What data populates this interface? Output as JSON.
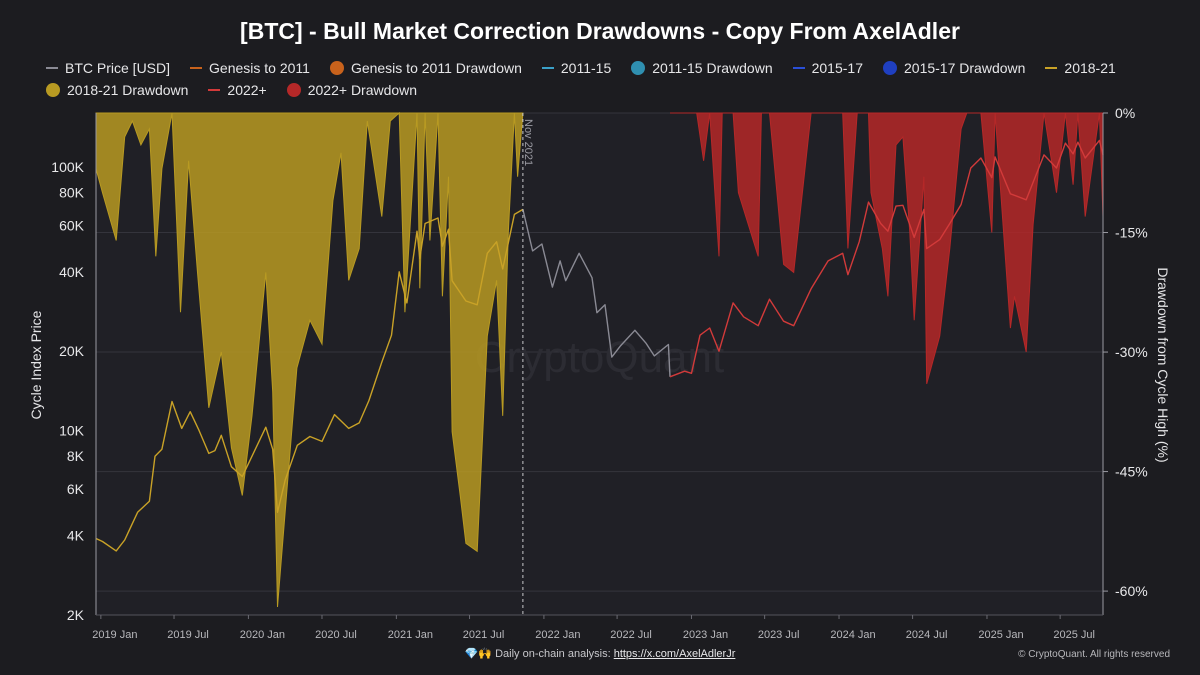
{
  "header": {
    "title": "[BTC] - Bull Market Correction Drawdowns - Copy From AxelAdler"
  },
  "legend": [
    {
      "label": "BTC Price [USD]",
      "kind": "line",
      "color": "#8a8a94"
    },
    {
      "label": "Genesis to 2011",
      "kind": "line",
      "color": "#c8621c"
    },
    {
      "label": "Genesis to 2011 Drawdown",
      "kind": "dot",
      "color": "#c8621c"
    },
    {
      "label": "2011-15",
      "kind": "line",
      "color": "#3aa0c8"
    },
    {
      "label": "2011-15 Drawdown",
      "kind": "dot",
      "color": "#2f8fb0"
    },
    {
      "label": "2015-17",
      "kind": "line",
      "color": "#2a4fd8"
    },
    {
      "label": "2015-17 Drawdown",
      "kind": "dot",
      "color": "#1f3fc0"
    },
    {
      "label": "2018-21",
      "kind": "line",
      "color": "#c9a227"
    },
    {
      "label": "2018-21 Drawdown",
      "kind": "dot",
      "color": "#b89a22"
    },
    {
      "label": "2022+",
      "kind": "line",
      "color": "#d23a3a"
    },
    {
      "label": "2022+ Drawdown",
      "kind": "dot",
      "color": "#b52828"
    }
  ],
  "footer": {
    "prefix": "💎🙌 Daily on-chain analysis: ",
    "link": "https://x.com/AxelAdlerJr",
    "copyright": "© CryptoQuant. All rights reserved"
  },
  "watermark": "CryptoQuant",
  "chart_data": {
    "type": "line",
    "title": "[BTC] - Bull Market Correction Drawdowns - Copy From AxelAdler",
    "ylabel_left": "Cycle Index Price",
    "ylabel_right": "Drawdown from Cycle High (%)",
    "y_scale_left": "log",
    "ylim_left": [
      2000,
      160000
    ],
    "ylim_right": [
      -63,
      0
    ],
    "x_range": [
      "2018-12-20",
      "2025-10-15"
    ],
    "left_ticks": [
      {
        "label": "100K",
        "value": 100000
      },
      {
        "label": "80K",
        "value": 80000
      },
      {
        "label": "60K",
        "value": 60000
      },
      {
        "label": "40K",
        "value": 40000
      },
      {
        "label": "20K",
        "value": 20000
      },
      {
        "label": "10K",
        "value": 10000
      },
      {
        "label": "8K",
        "value": 8000
      },
      {
        "label": "6K",
        "value": 6000
      },
      {
        "label": "4K",
        "value": 4000
      },
      {
        "label": "2K",
        "value": 2000
      }
    ],
    "right_ticks": [
      {
        "label": "0%",
        "value": 0
      },
      {
        "label": "-15%",
        "value": -15
      },
      {
        "label": "-30%",
        "value": -30
      },
      {
        "label": "-45%",
        "value": -45
      },
      {
        "label": "-60%",
        "value": -60
      }
    ],
    "x_ticks": [
      {
        "label": "2019 Jan",
        "date": "2019-01-01"
      },
      {
        "label": "2019 Jul",
        "date": "2019-07-01"
      },
      {
        "label": "2020 Jan",
        "date": "2020-01-01"
      },
      {
        "label": "2020 Jul",
        "date": "2020-07-01"
      },
      {
        "label": "2021 Jan",
        "date": "2021-01-01"
      },
      {
        "label": "2021 Jul",
        "date": "2021-07-01"
      },
      {
        "label": "2022 Jan",
        "date": "2022-01-01"
      },
      {
        "label": "2022 Jul",
        "date": "2022-07-01"
      },
      {
        "label": "2023 Jan",
        "date": "2023-01-01"
      },
      {
        "label": "2023 Jul",
        "date": "2023-07-01"
      },
      {
        "label": "2024 Jan",
        "date": "2024-01-01"
      },
      {
        "label": "2024 Jul",
        "date": "2024-07-01"
      },
      {
        "label": "2025 Jan",
        "date": "2025-01-01"
      },
      {
        "label": "2025 Jul",
        "date": "2025-07-01"
      }
    ],
    "annotation": {
      "label": "Nov 2021",
      "date": "2021-11-10"
    },
    "series": [
      {
        "name": "2018-21",
        "color": "#c9a227",
        "points": [
          [
            "2018-12-20",
            3900
          ],
          [
            "2019-01-05",
            3800
          ],
          [
            "2019-02-08",
            3500
          ],
          [
            "2019-03-01",
            3850
          ],
          [
            "2019-04-02",
            4900
          ],
          [
            "2019-05-01",
            5400
          ],
          [
            "2019-05-15",
            8000
          ],
          [
            "2019-06-01",
            8500
          ],
          [
            "2019-06-26",
            12900
          ],
          [
            "2019-07-20",
            10200
          ],
          [
            "2019-08-10",
            11800
          ],
          [
            "2019-09-01",
            10000
          ],
          [
            "2019-09-25",
            8200
          ],
          [
            "2019-10-10",
            8400
          ],
          [
            "2019-10-26",
            9600
          ],
          [
            "2019-11-20",
            7300
          ],
          [
            "2019-12-17",
            6700
          ],
          [
            "2020-01-10",
            8000
          ],
          [
            "2020-02-13",
            10300
          ],
          [
            "2020-03-01",
            8500
          ],
          [
            "2020-03-13",
            4900
          ],
          [
            "2020-04-01",
            6500
          ],
          [
            "2020-05-01",
            8800
          ],
          [
            "2020-06-01",
            9500
          ],
          [
            "2020-07-01",
            9100
          ],
          [
            "2020-08-01",
            11500
          ],
          [
            "2020-09-05",
            10200
          ],
          [
            "2020-10-01",
            10700
          ],
          [
            "2020-10-25",
            13000
          ],
          [
            "2020-11-25",
            18000
          ],
          [
            "2020-12-20",
            23000
          ],
          [
            "2021-01-08",
            40000
          ],
          [
            "2021-01-27",
            30500
          ],
          [
            "2021-02-21",
            57000
          ],
          [
            "2021-02-28",
            45000
          ],
          [
            "2021-03-13",
            61000
          ],
          [
            "2021-04-14",
            64000
          ],
          [
            "2021-04-25",
            50000
          ],
          [
            "2021-05-10",
            58000
          ],
          [
            "2021-05-19",
            37000
          ],
          [
            "2021-06-22",
            31000
          ],
          [
            "2021-07-20",
            30000
          ],
          [
            "2021-08-14",
            47000
          ],
          [
            "2021-09-06",
            52000
          ],
          [
            "2021-09-21",
            41000
          ],
          [
            "2021-10-20",
            66000
          ],
          [
            "2021-11-10",
            69000
          ]
        ]
      },
      {
        "name": "BTC Price [USD]",
        "color": "#8a8a94",
        "points": [
          [
            "2021-11-10",
            69000
          ],
          [
            "2021-12-04",
            48000
          ],
          [
            "2021-12-27",
            51000
          ],
          [
            "2022-01-22",
            35000
          ],
          [
            "2022-02-10",
            44000
          ],
          [
            "2022-02-24",
            37000
          ],
          [
            "2022-03-29",
            47000
          ],
          [
            "2022-04-30",
            38000
          ],
          [
            "2022-05-12",
            28000
          ],
          [
            "2022-06-01",
            30000
          ],
          [
            "2022-06-18",
            19000
          ],
          [
            "2022-07-10",
            21000
          ],
          [
            "2022-08-14",
            24000
          ],
          [
            "2022-09-10",
            21500
          ],
          [
            "2022-10-01",
            19200
          ],
          [
            "2022-11-05",
            21200
          ],
          [
            "2022-11-09",
            16000
          ]
        ]
      },
      {
        "name": "2022+",
        "color": "#d23a3a",
        "points": [
          [
            "2022-11-09",
            16000
          ],
          [
            "2022-12-15",
            16800
          ],
          [
            "2023-01-01",
            16500
          ],
          [
            "2023-01-22",
            23000
          ],
          [
            "2023-02-15",
            24500
          ],
          [
            "2023-03-10",
            20000
          ],
          [
            "2023-04-14",
            30500
          ],
          [
            "2023-05-10",
            27000
          ],
          [
            "2023-06-15",
            25000
          ],
          [
            "2023-07-13",
            31500
          ],
          [
            "2023-08-17",
            26000
          ],
          [
            "2023-09-11",
            25000
          ],
          [
            "2023-10-24",
            34500
          ],
          [
            "2023-12-05",
            44000
          ],
          [
            "2024-01-10",
            47000
          ],
          [
            "2024-01-23",
            39000
          ],
          [
            "2024-02-20",
            52000
          ],
          [
            "2024-03-14",
            73500
          ],
          [
            "2024-04-13",
            61000
          ],
          [
            "2024-05-01",
            57000
          ],
          [
            "2024-05-21",
            71000
          ],
          [
            "2024-06-07",
            71500
          ],
          [
            "2024-07-05",
            54000
          ],
          [
            "2024-07-29",
            69000
          ],
          [
            "2024-08-05",
            49000
          ],
          [
            "2024-09-06",
            53000
          ],
          [
            "2024-10-01",
            61000
          ],
          [
            "2024-10-29",
            72000
          ],
          [
            "2024-11-22",
            99000
          ],
          [
            "2024-12-17",
            108000
          ],
          [
            "2025-01-13",
            91000
          ],
          [
            "2025-01-21",
            109000
          ],
          [
            "2025-02-28",
            79000
          ],
          [
            "2025-04-08",
            75000
          ],
          [
            "2025-05-22",
            111000
          ],
          [
            "2025-06-22",
            99000
          ],
          [
            "2025-07-14",
            123000
          ],
          [
            "2025-08-02",
            112000
          ],
          [
            "2025-08-14",
            124000
          ],
          [
            "2025-09-01",
            108000
          ],
          [
            "2025-10-06",
            126000
          ],
          [
            "2025-10-15",
            111000
          ]
        ]
      }
    ],
    "drawdown_series": [
      {
        "name": "2018-21 Drawdown",
        "color": "#b89a22",
        "points": [
          [
            "2018-12-20",
            -7
          ],
          [
            "2019-01-05",
            -10
          ],
          [
            "2019-02-08",
            -16
          ],
          [
            "2019-03-01",
            -3
          ],
          [
            "2019-03-20",
            -1
          ],
          [
            "2019-04-10",
            -4
          ],
          [
            "2019-05-01",
            -2
          ],
          [
            "2019-05-17",
            -18
          ],
          [
            "2019-06-01",
            -7
          ],
          [
            "2019-06-26",
            0
          ],
          [
            "2019-07-17",
            -25
          ],
          [
            "2019-08-06",
            -6
          ],
          [
            "2019-08-28",
            -20
          ],
          [
            "2019-09-25",
            -37
          ],
          [
            "2019-10-26",
            -30
          ],
          [
            "2019-11-20",
            -42
          ],
          [
            "2019-12-17",
            -48
          ],
          [
            "2020-01-10",
            -38
          ],
          [
            "2020-02-13",
            -20
          ],
          [
            "2020-03-01",
            -35
          ],
          [
            "2020-03-13",
            -62
          ],
          [
            "2020-04-01",
            -50
          ],
          [
            "2020-04-30",
            -32
          ],
          [
            "2020-06-01",
            -26
          ],
          [
            "2020-07-01",
            -29
          ],
          [
            "2020-07-28",
            -11
          ],
          [
            "2020-08-17",
            -5
          ],
          [
            "2020-09-05",
            -21
          ],
          [
            "2020-10-01",
            -17
          ],
          [
            "2020-10-21",
            -1
          ],
          [
            "2020-11-26",
            -13
          ],
          [
            "2020-12-17",
            -1
          ],
          [
            "2021-01-08",
            0
          ],
          [
            "2021-01-22",
            -25
          ],
          [
            "2021-02-21",
            0
          ],
          [
            "2021-02-28",
            -22
          ],
          [
            "2021-03-13",
            0
          ],
          [
            "2021-03-25",
            -16
          ],
          [
            "2021-04-14",
            0
          ],
          [
            "2021-04-25",
            -23
          ],
          [
            "2021-05-10",
            -8
          ],
          [
            "2021-05-19",
            -40
          ],
          [
            "2021-06-08",
            -48
          ],
          [
            "2021-06-22",
            -54
          ],
          [
            "2021-07-20",
            -55
          ],
          [
            "2021-08-14",
            -28
          ],
          [
            "2021-09-06",
            -21
          ],
          [
            "2021-09-21",
            -38
          ],
          [
            "2021-10-05",
            -15
          ],
          [
            "2021-10-20",
            0
          ],
          [
            "2021-10-28",
            -8
          ],
          [
            "2021-11-10",
            0
          ]
        ]
      },
      {
        "name": "2022+ Drawdown",
        "color": "#b52828",
        "points": [
          [
            "2022-11-09",
            0
          ],
          [
            "2023-01-14",
            0
          ],
          [
            "2023-01-31",
            -6
          ],
          [
            "2023-02-15",
            0
          ],
          [
            "2023-03-10",
            -18
          ],
          [
            "2023-03-18",
            0
          ],
          [
            "2023-04-14",
            0
          ],
          [
            "2023-04-27",
            -10
          ],
          [
            "2023-06-15",
            -18
          ],
          [
            "2023-06-23",
            0
          ],
          [
            "2023-07-13",
            0
          ],
          [
            "2023-08-17",
            -19
          ],
          [
            "2023-09-11",
            -20
          ],
          [
            "2023-10-24",
            0
          ],
          [
            "2023-12-05",
            0
          ],
          [
            "2024-01-10",
            0
          ],
          [
            "2024-01-23",
            -17
          ],
          [
            "2024-02-15",
            0
          ],
          [
            "2024-03-14",
            0
          ],
          [
            "2024-03-20",
            -10
          ],
          [
            "2024-04-17",
            -17
          ],
          [
            "2024-05-01",
            -23
          ],
          [
            "2024-05-21",
            -4
          ],
          [
            "2024-06-07",
            -3
          ],
          [
            "2024-06-24",
            -15
          ],
          [
            "2024-07-05",
            -26
          ],
          [
            "2024-07-29",
            -8
          ],
          [
            "2024-08-05",
            -34
          ],
          [
            "2024-09-06",
            -28
          ],
          [
            "2024-10-01",
            -17
          ],
          [
            "2024-10-29",
            -2
          ],
          [
            "2024-11-12",
            0
          ],
          [
            "2024-12-17",
            0
          ],
          [
            "2025-01-13",
            -15
          ],
          [
            "2025-01-21",
            0
          ],
          [
            "2025-02-28",
            -27
          ],
          [
            "2025-03-10",
            -23
          ],
          [
            "2025-04-08",
            -30
          ],
          [
            "2025-04-25",
            -14
          ],
          [
            "2025-05-22",
            0
          ],
          [
            "2025-06-22",
            -10
          ],
          [
            "2025-07-14",
            0
          ],
          [
            "2025-08-02",
            -9
          ],
          [
            "2025-08-14",
            0
          ],
          [
            "2025-09-01",
            -13
          ],
          [
            "2025-10-06",
            0
          ],
          [
            "2025-10-15",
            -13
          ]
        ]
      }
    ]
  }
}
